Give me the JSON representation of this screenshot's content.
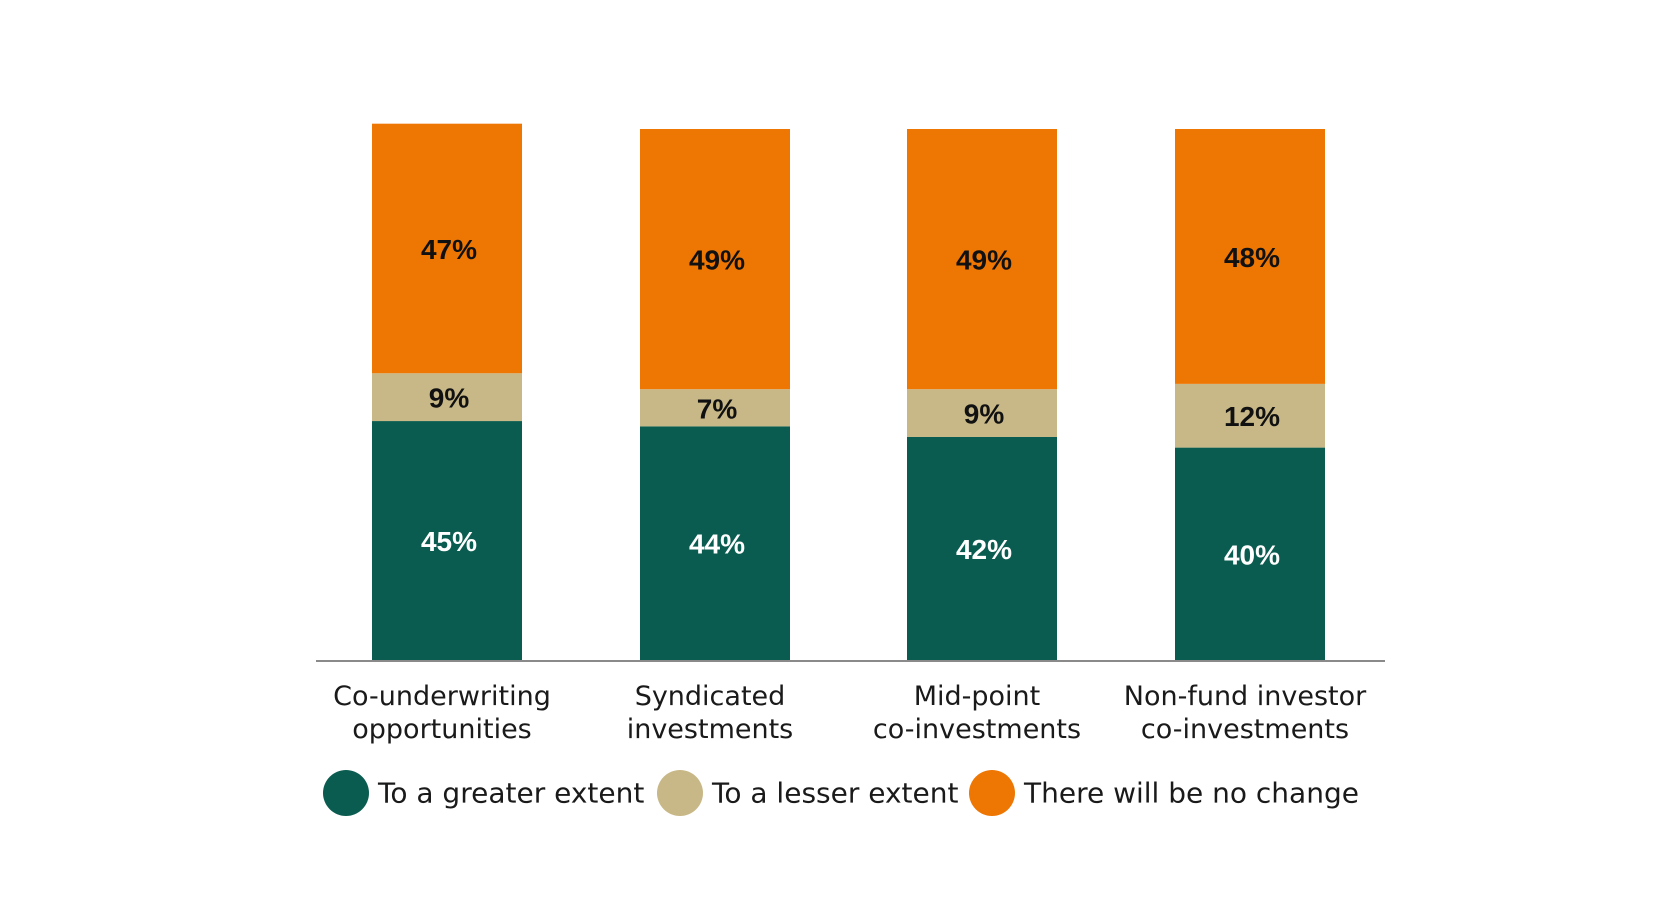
{
  "chart_data": {
    "type": "bar",
    "stacked": true,
    "categories": [
      [
        "Co-underwriting",
        "opportunities"
      ],
      [
        "Syndicated",
        "investments"
      ],
      [
        "Mid-point",
        "co-investments"
      ],
      [
        "Non-fund investor",
        "co-investments"
      ]
    ],
    "series": [
      {
        "name": "To a greater extent",
        "color": "#0b5c50",
        "label_color": "#ffffff",
        "values": [
          45,
          44,
          42,
          40
        ],
        "labels": [
          "45%",
          "44%",
          "42%",
          "40%"
        ]
      },
      {
        "name": "To a lesser extent",
        "color": "#c8b887",
        "label_color": "#111111",
        "values": [
          9,
          7,
          9,
          12
        ],
        "labels": [
          "9%",
          "7%",
          "9%",
          "12%"
        ]
      },
      {
        "name": "There will be no change",
        "color": "#ee7603",
        "label_color": "#111111",
        "values": [
          47,
          49,
          49,
          48
        ],
        "labels": [
          "47%",
          "49%",
          "49%",
          "48%"
        ]
      }
    ],
    "ylim": [
      0,
      100
    ],
    "axis_color": "#8a8a8a",
    "legend_position": "bottom",
    "title": "",
    "xlabel": "",
    "ylabel": ""
  }
}
